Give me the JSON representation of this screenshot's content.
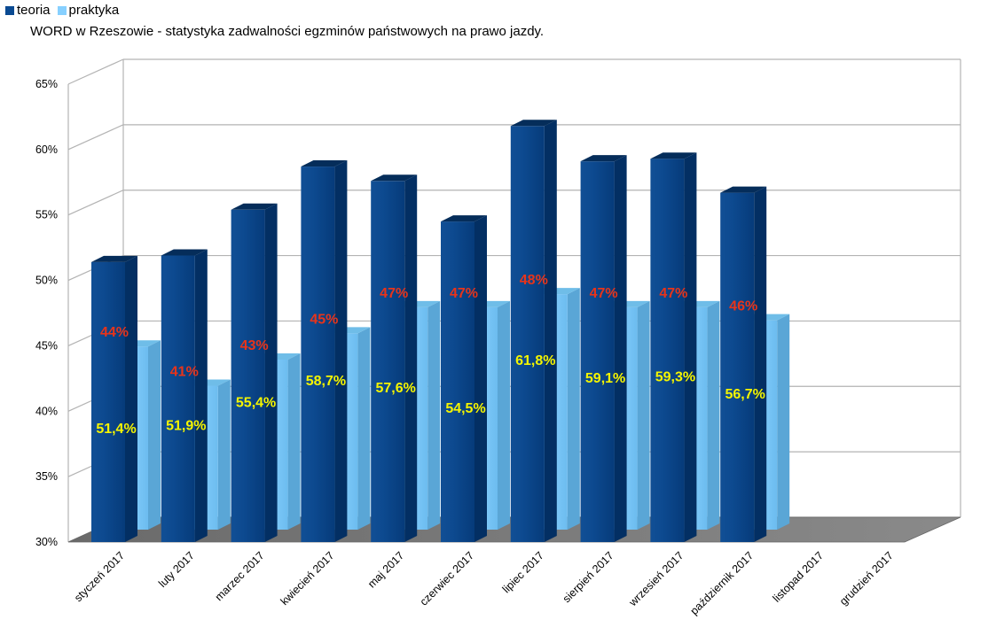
{
  "chart_data": {
    "type": "bar",
    "title": "WORD w Rzeszowie - statystyka zadwalności egzminów państwowych na prawo jazdy.",
    "categories": [
      "styczeń 2017",
      "luty 2017",
      "marzec 2017",
      "kwiecień 2017",
      "maj 2017",
      "czerwiec 2017",
      "lipiec 2017",
      "sierpień 2017",
      "wrzesień 2017",
      "październik 2017",
      "listopad 2017",
      "grudzień 2017"
    ],
    "series": [
      {
        "name": "teoria",
        "color": "#0a4a92",
        "values": [
          51.4,
          51.9,
          55.4,
          58.7,
          57.6,
          54.5,
          61.8,
          59.1,
          59.3,
          56.7,
          null,
          null
        ],
        "labels": [
          "51,4%",
          "51,9%",
          "55,4%",
          "58,7%",
          "57,6%",
          "54,5%",
          "61,8%",
          "59,1%",
          "59,3%",
          "56,7%",
          "",
          ""
        ]
      },
      {
        "name": "praktyka",
        "color": "#87d0ff",
        "values": [
          44,
          41,
          43,
          45,
          47,
          47,
          48,
          47,
          47,
          46,
          null,
          null
        ],
        "labels": [
          "44%",
          "41%",
          "43%",
          "45%",
          "47%",
          "47%",
          "48%",
          "47%",
          "47%",
          "46%",
          "",
          ""
        ]
      }
    ],
    "y_ticks": [
      "30%",
      "35%",
      "40%",
      "45%",
      "50%",
      "55%",
      "60%",
      "65%"
    ],
    "ylim": [
      30,
      65
    ],
    "grid": true,
    "legend_position": "top-left",
    "style": "3d-cylinder"
  }
}
